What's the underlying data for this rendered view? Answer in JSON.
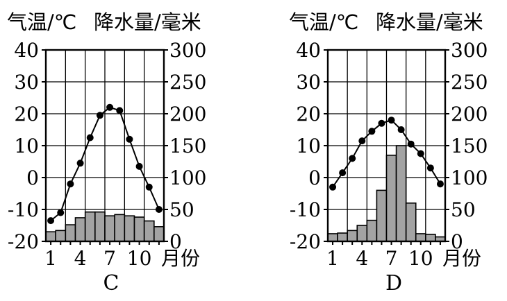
{
  "chart_data": [
    {
      "type": "bar+line",
      "panel_label": "C",
      "left_axis_title": "气温/℃",
      "right_axis_title": "降水量/毫米",
      "x_axis_unit": "月份",
      "x_ticks": [
        "1",
        "4",
        "7",
        "10"
      ],
      "x": [
        1,
        2,
        3,
        4,
        5,
        6,
        7,
        8,
        9,
        10,
        11,
        12
      ],
      "temp_ylim": [
        -20,
        40
      ],
      "temp_ticks": [
        "40",
        "30",
        "20",
        "10",
        "0",
        "-10",
        "-20"
      ],
      "precip_ylim": [
        0,
        300
      ],
      "precip_ticks": [
        "300",
        "250",
        "200",
        "150",
        "100",
        "50",
        "0"
      ],
      "grid": true,
      "temperature": [
        -13.5,
        -11,
        -2,
        4.5,
        12.5,
        19.5,
        22,
        21,
        12,
        3.5,
        -3,
        -10
      ],
      "precipitation": [
        15,
        17,
        26,
        37,
        46,
        46,
        40,
        42,
        40,
        38,
        32,
        23
      ]
    },
    {
      "type": "bar+line",
      "panel_label": "D",
      "left_axis_title": "气温/℃",
      "right_axis_title": "降水量/毫米",
      "x_axis_unit": "月份",
      "x_ticks": [
        "1",
        "4",
        "7",
        "10"
      ],
      "x": [
        1,
        2,
        3,
        4,
        5,
        6,
        7,
        8,
        9,
        10,
        11,
        12
      ],
      "temp_ylim": [
        -20,
        40
      ],
      "temp_ticks": [
        "40",
        "30",
        "20",
        "10",
        "0",
        "-10",
        "-20"
      ],
      "precip_ylim": [
        0,
        300
      ],
      "precip_ticks": [
        "300",
        "250",
        "200",
        "150",
        "100",
        "50",
        "0"
      ],
      "grid": true,
      "temperature": [
        -3,
        1.5,
        6,
        11.5,
        14.5,
        17,
        18,
        15,
        10.5,
        7.5,
        3,
        -2
      ],
      "precipitation": [
        12,
        13,
        17,
        25,
        33,
        80,
        135,
        150,
        60,
        12,
        11,
        7
      ]
    }
  ]
}
